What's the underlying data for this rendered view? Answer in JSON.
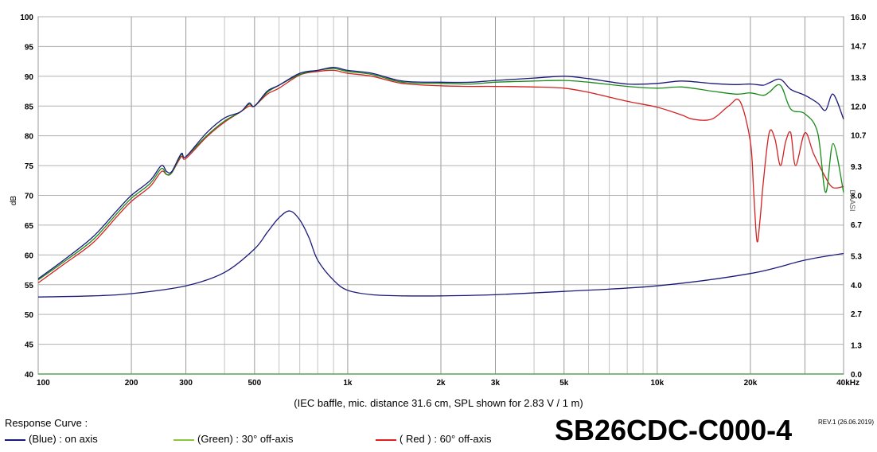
{
  "chart_data": {
    "type": "line",
    "xscale": "log",
    "xlim": [
      100,
      40000
    ],
    "ylim": [
      40,
      100
    ],
    "y2lim": [
      0.0,
      16.0
    ],
    "ylabel": "dB",
    "y2label": "Ohm",
    "grid": true,
    "x_ticks": [
      {
        "value": 100,
        "label": "100"
      },
      {
        "value": 200,
        "label": "200"
      },
      {
        "value": 300,
        "label": "300"
      },
      {
        "value": 500,
        "label": "500"
      },
      {
        "value": 1000,
        "label": "1k"
      },
      {
        "value": 2000,
        "label": "2k"
      },
      {
        "value": 3000,
        "label": "3k"
      },
      {
        "value": 5000,
        "label": "5k"
      },
      {
        "value": 10000,
        "label": "10k"
      },
      {
        "value": 20000,
        "label": "20k"
      },
      {
        "value": 40000,
        "label": "40kHz"
      }
    ],
    "y_ticks": [
      "100",
      "95",
      "90",
      "85",
      "80",
      "75",
      "70",
      "65",
      "60",
      "55",
      "50",
      "45",
      "40"
    ],
    "y2_ticks": [
      "16.0",
      "14.7",
      "13.3",
      "12.0",
      "10.7",
      "9.3",
      "8.0",
      "6.7",
      "5.3",
      "4.0",
      "2.7",
      "1.3",
      "0.0"
    ],
    "series": [
      {
        "name": "(Blue)  : on axis",
        "color": "#1a1a7a",
        "x": [
          100,
          120,
          150,
          180,
          200,
          230,
          250,
          260,
          270,
          290,
          300,
          350,
          400,
          450,
          480,
          500,
          550,
          600,
          700,
          800,
          900,
          1000,
          1200,
          1500,
          2000,
          2500,
          3000,
          4000,
          5000,
          6000,
          8000,
          10000,
          12000,
          15000,
          18000,
          20000,
          22000,
          23000,
          25000,
          27000,
          30000,
          33000,
          35000,
          37000,
          40000
        ],
        "values": [
          56,
          59,
          63,
          67.5,
          70,
          72.5,
          75,
          74,
          74,
          77,
          76.5,
          80.5,
          83,
          84,
          85.5,
          85,
          87.5,
          88.5,
          90.5,
          91,
          91.5,
          91,
          90.5,
          89.2,
          89,
          89,
          89.3,
          89.7,
          90,
          89.6,
          88.7,
          88.8,
          89.2,
          88.8,
          88.6,
          88.7,
          88.5,
          88.9,
          89.5,
          87.8,
          86.8,
          85.5,
          84.3,
          87,
          82.8
        ]
      },
      {
        "name": "(Green) : 30° off-axis",
        "color": "#1a8a1a",
        "x": [
          100,
          120,
          150,
          180,
          200,
          230,
          250,
          260,
          270,
          290,
          300,
          350,
          400,
          450,
          480,
          500,
          550,
          600,
          700,
          800,
          900,
          1000,
          1200,
          1500,
          2000,
          2500,
          3000,
          4000,
          5000,
          6000,
          8000,
          10000,
          12000,
          15000,
          18000,
          20000,
          22000,
          23000,
          25000,
          27000,
          30000,
          33000,
          35000,
          37000,
          40000
        ],
        "values": [
          55.8,
          58.7,
          62.5,
          67,
          69.5,
          72,
          74.5,
          73.5,
          73.8,
          76.8,
          76.5,
          80,
          82.5,
          84,
          85.3,
          85,
          87.3,
          88.5,
          90.3,
          91,
          91.3,
          90.8,
          90.3,
          89,
          88.8,
          88.7,
          89,
          89.2,
          89.3,
          89,
          88.3,
          88,
          88.2,
          87.5,
          87,
          87.2,
          86.8,
          87.3,
          88.5,
          84.5,
          83.7,
          80.5,
          70.5,
          78.7,
          70.5
        ]
      },
      {
        "name": "( Red ) : 60° off-axis",
        "color": "#d42020",
        "x": [
          100,
          120,
          150,
          180,
          200,
          230,
          250,
          260,
          270,
          290,
          300,
          350,
          400,
          450,
          480,
          500,
          550,
          600,
          700,
          800,
          900,
          1000,
          1200,
          1500,
          2000,
          2500,
          3000,
          4000,
          5000,
          6000,
          8000,
          10000,
          12000,
          13000,
          15000,
          17000,
          18500,
          20000,
          20500,
          21000,
          21500,
          22000,
          23000,
          24000,
          25000,
          26000,
          27000,
          28000,
          30000,
          32000,
          35000,
          37000,
          40000
        ],
        "values": [
          55.3,
          58.3,
          62,
          66.5,
          69,
          71.5,
          74,
          73.5,
          73.8,
          76.5,
          76.2,
          79.8,
          82.3,
          84,
          85,
          85,
          87,
          88,
          90.2,
          90.8,
          91,
          90.5,
          90,
          88.8,
          88.4,
          88.3,
          88.3,
          88.2,
          88,
          87.3,
          85.8,
          84.8,
          83.5,
          82.8,
          82.8,
          85,
          85.8,
          79,
          70.5,
          62.3,
          66,
          72,
          80.5,
          79.5,
          75,
          79,
          80.5,
          75,
          80.5,
          77,
          73,
          71.3,
          71.5
        ]
      },
      {
        "name": "Impedance",
        "axis": "right",
        "color": "#1a1a7a",
        "x": [
          100,
          150,
          200,
          300,
          400,
          500,
          550,
          600,
          650,
          700,
          750,
          800,
          900,
          1000,
          1200,
          1500,
          2000,
          3000,
          5000,
          10000,
          20000,
          30000,
          40000
        ],
        "values": [
          3.45,
          3.5,
          3.6,
          3.95,
          4.55,
          5.6,
          6.35,
          7.0,
          7.3,
          6.9,
          6.1,
          5.1,
          4.2,
          3.75,
          3.55,
          3.5,
          3.5,
          3.55,
          3.7,
          3.95,
          4.5,
          5.1,
          5.4
        ]
      }
    ]
  },
  "caption": "(IEC baffle, mic. distance 31.6 cm, SPL shown for 2.83 V / 1 m)",
  "legend": {
    "title": "Response Curve :",
    "blue_label": "(Blue)  : on axis",
    "green_label": "(Green) : 30° off-axis",
    "red_label": "( Red ) : 60° off-axis",
    "blue_color": "#1a1a7a",
    "green_color": "#8cc63f",
    "red_color": "#e02020"
  },
  "model": "SB26CDC-C000-4",
  "revision": "REV.1 (26.06.2019)",
  "watermark": "DAASI"
}
